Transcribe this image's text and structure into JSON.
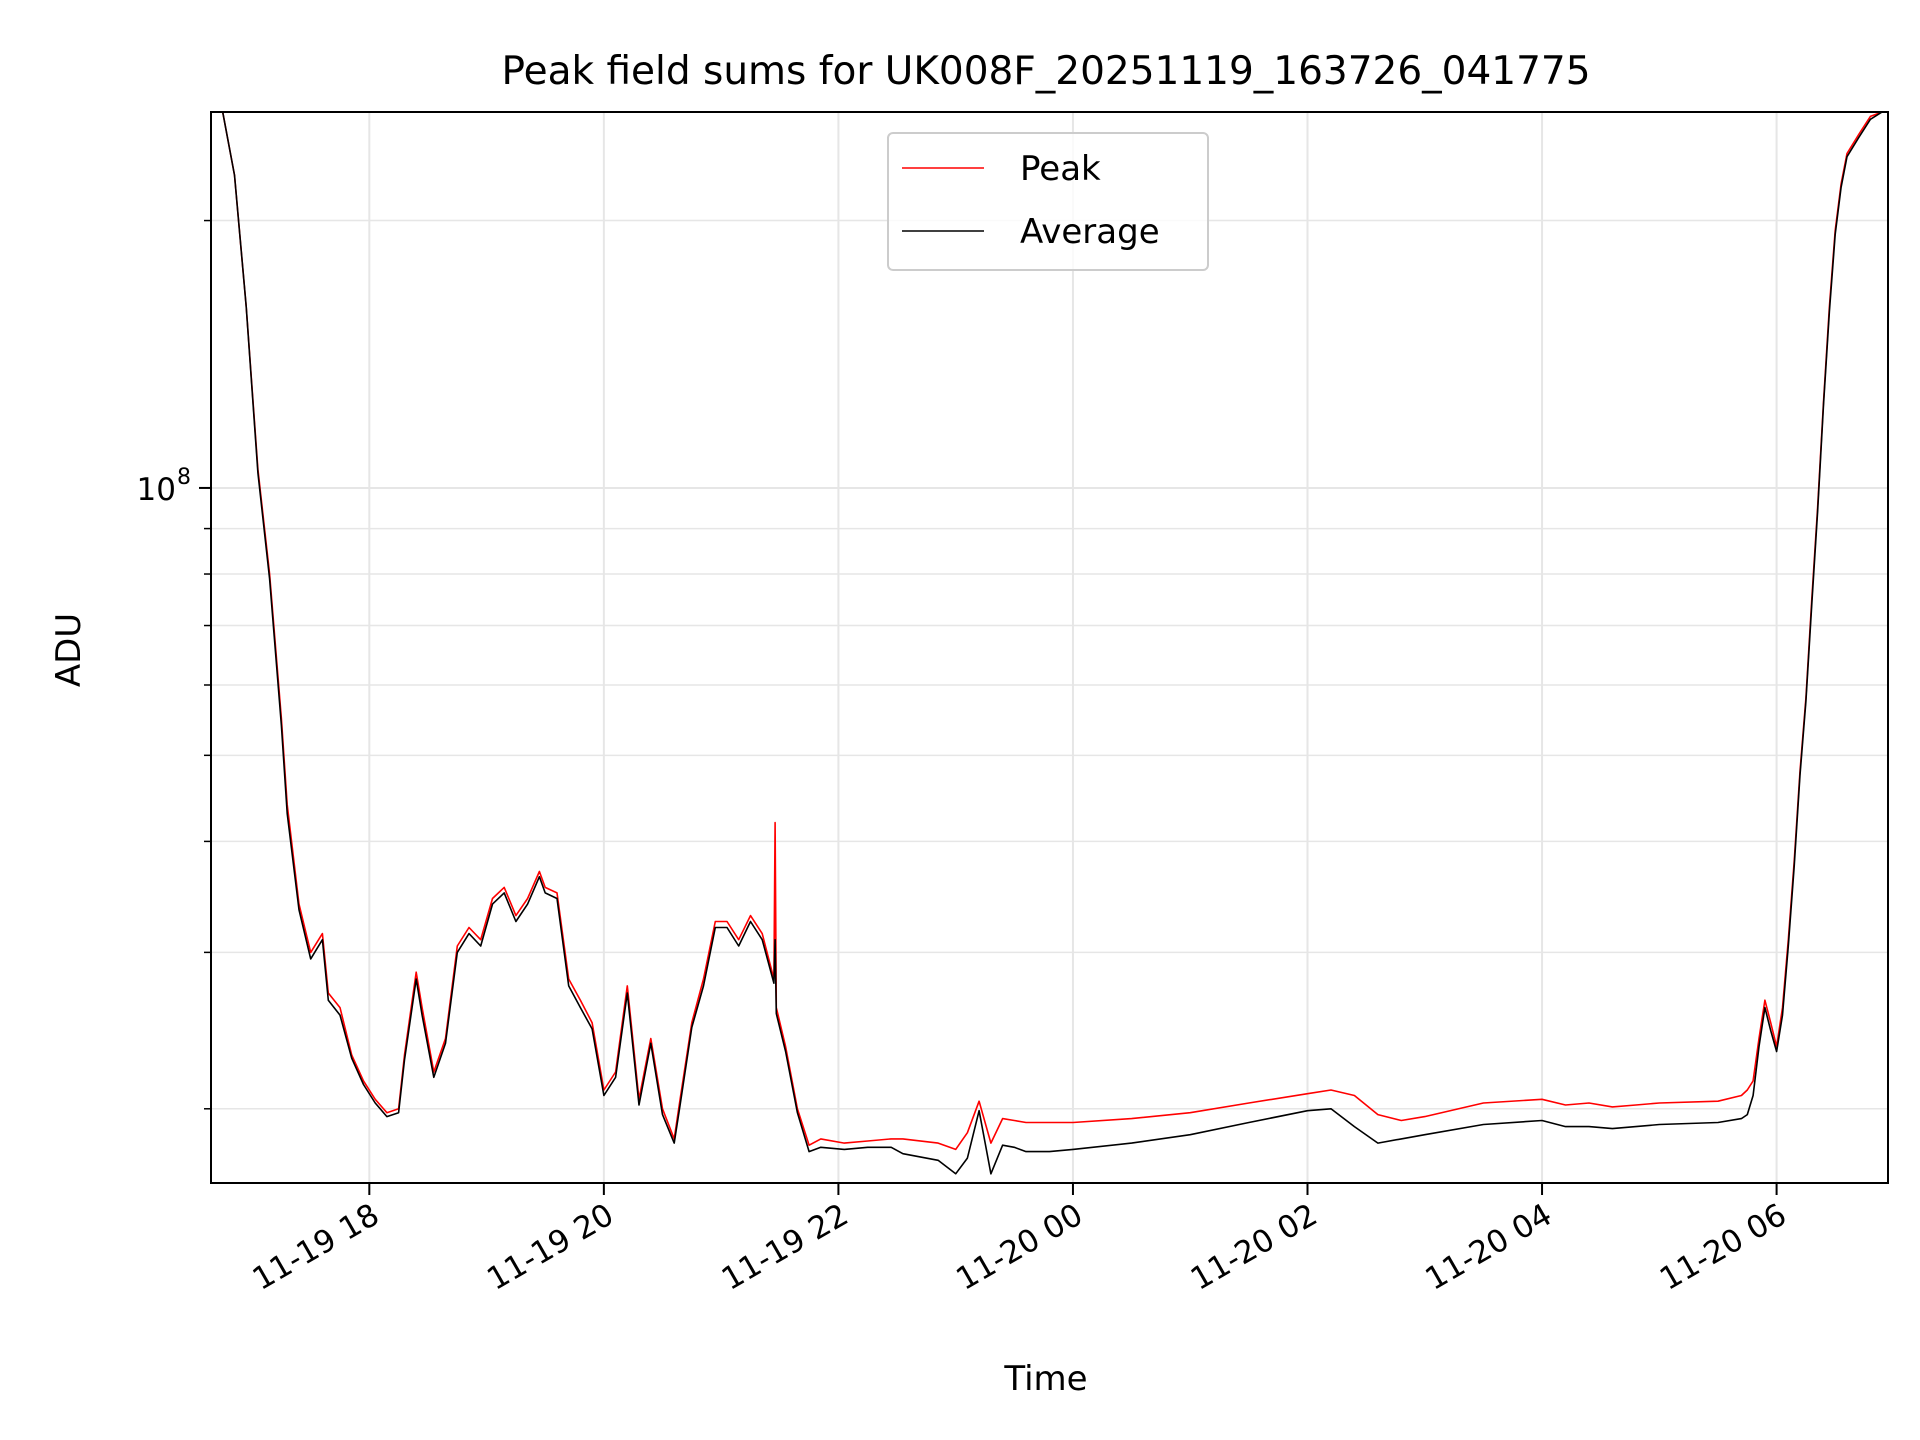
{
  "chart_data": {
    "type": "line",
    "title": "Peak field sums for UK008F_20251119_163726_041775",
    "xlabel": "Time",
    "ylabel": "ADU",
    "yscale": "log",
    "grid": true,
    "legend_position": "top-center",
    "x_unit": "hours since 2025-11-19 16:00",
    "xlim": [
      16.65,
      30.95
    ],
    "ylim": [
      16500000,
      265000000
    ],
    "x_ticks": [
      {
        "value": 18,
        "label": "11-19 18"
      },
      {
        "value": 20,
        "label": "11-19 20"
      },
      {
        "value": 22,
        "label": "11-19 22"
      },
      {
        "value": 24,
        "label": "11-20 00"
      },
      {
        "value": 26,
        "label": "11-20 02"
      },
      {
        "value": 28,
        "label": "11-20 04"
      },
      {
        "value": 30,
        "label": "11-20 06"
      }
    ],
    "y_major_ticks": [
      {
        "value": 100000000,
        "base": "10",
        "exp": "8"
      }
    ],
    "y_minor_ticks": [
      20000000,
      30000000,
      40000000,
      50000000,
      60000000,
      70000000,
      80000000,
      90000000,
      200000000
    ],
    "series": [
      {
        "name": "Peak",
        "color": "#ff0000",
        "x": [
          16.75,
          16.85,
          16.95,
          17.05,
          17.15,
          17.25,
          17.3,
          17.4,
          17.5,
          17.6,
          17.65,
          17.75,
          17.85,
          17.95,
          18.05,
          18.15,
          18.25,
          18.3,
          18.4,
          18.45,
          18.55,
          18.65,
          18.75,
          18.85,
          18.95,
          19.05,
          19.15,
          19.25,
          19.35,
          19.45,
          19.5,
          19.6,
          19.7,
          19.8,
          19.9,
          20.0,
          20.1,
          20.2,
          20.3,
          20.4,
          20.5,
          20.6,
          20.65,
          20.75,
          20.85,
          20.95,
          21.05,
          21.15,
          21.25,
          21.35,
          21.45,
          21.46,
          21.47,
          21.55,
          21.65,
          21.75,
          21.85,
          22.05,
          22.25,
          22.45,
          22.55,
          22.85,
          23.0,
          23.1,
          23.2,
          23.3,
          23.4,
          23.5,
          23.6,
          23.8,
          24.0,
          24.5,
          25.0,
          25.5,
          26.0,
          26.2,
          26.4,
          26.6,
          26.8,
          27.0,
          27.5,
          28.0,
          28.2,
          28.4,
          28.6,
          28.8,
          29.0,
          29.5,
          29.7,
          29.75,
          29.8,
          29.85,
          29.9,
          29.95,
          30.0,
          30.05,
          30.1,
          30.15,
          30.2,
          30.25,
          30.3,
          30.35,
          30.4,
          30.45,
          30.5,
          30.55,
          30.6,
          30.7,
          30.8,
          30.9
        ],
        "y": [
          265000000,
          225000000,
          160000000,
          105000000,
          80000000,
          55000000,
          44000000,
          34000000,
          30000000,
          31500000,
          27000000,
          26000000,
          23000000,
          21500000,
          20500000,
          19800000,
          20000000,
          23000000,
          28500000,
          26000000,
          22000000,
          24000000,
          30500000,
          32000000,
          31000000,
          34500000,
          35500000,
          33000000,
          34500000,
          37000000,
          35500000,
          35000000,
          28000000,
          26500000,
          25000000,
          21000000,
          22000000,
          27500000,
          20500000,
          24000000,
          20000000,
          18500000,
          20500000,
          25000000,
          28000000,
          32500000,
          32500000,
          31000000,
          33000000,
          31500000,
          28000000,
          42000000,
          26000000,
          23500000,
          20000000,
          18200000,
          18500000,
          18300000,
          18400000,
          18500000,
          18500000,
          18300000,
          18000000,
          18800000,
          20400000,
          18300000,
          19500000,
          19400000,
          19300000,
          19300000,
          19300000,
          19500000,
          19800000,
          20300000,
          20800000,
          21000000,
          20700000,
          19700000,
          19400000,
          19600000,
          20300000,
          20500000,
          20200000,
          20300000,
          20100000,
          20200000,
          20300000,
          20400000,
          20700000,
          21000000,
          21500000,
          24000000,
          26500000,
          25000000,
          23500000,
          26000000,
          31000000,
          38000000,
          48000000,
          58000000,
          75000000,
          95000000,
          125000000,
          160000000,
          195000000,
          220000000,
          238000000,
          250000000,
          262000000,
          265000000
        ]
      },
      {
        "name": "Average",
        "color": "#000000",
        "x": [
          16.75,
          16.85,
          16.95,
          17.05,
          17.15,
          17.25,
          17.3,
          17.4,
          17.5,
          17.6,
          17.65,
          17.75,
          17.85,
          17.95,
          18.05,
          18.15,
          18.25,
          18.3,
          18.4,
          18.45,
          18.55,
          18.65,
          18.75,
          18.85,
          18.95,
          19.05,
          19.15,
          19.25,
          19.35,
          19.45,
          19.5,
          19.6,
          19.7,
          19.8,
          19.9,
          20.0,
          20.1,
          20.2,
          20.3,
          20.4,
          20.5,
          20.6,
          20.65,
          20.75,
          20.85,
          20.95,
          21.05,
          21.15,
          21.25,
          21.35,
          21.45,
          21.46,
          21.47,
          21.55,
          21.65,
          21.75,
          21.85,
          22.05,
          22.25,
          22.45,
          22.55,
          22.85,
          23.0,
          23.1,
          23.2,
          23.3,
          23.4,
          23.5,
          23.6,
          23.8,
          24.0,
          24.5,
          25.0,
          25.5,
          26.0,
          26.2,
          26.4,
          26.6,
          26.8,
          27.0,
          27.5,
          28.0,
          28.2,
          28.4,
          28.6,
          28.8,
          29.0,
          29.5,
          29.7,
          29.75,
          29.8,
          29.85,
          29.9,
          29.95,
          30.0,
          30.05,
          30.1,
          30.15,
          30.2,
          30.25,
          30.3,
          30.35,
          30.4,
          30.45,
          30.5,
          30.55,
          30.6,
          30.7,
          30.8,
          30.9
        ],
        "y": [
          265000000,
          225000000,
          160000000,
          104000000,
          79000000,
          54000000,
          43000000,
          33500000,
          29500000,
          31000000,
          26500000,
          25500000,
          22800000,
          21300000,
          20300000,
          19600000,
          19800000,
          22700000,
          28000000,
          25500000,
          21700000,
          23700000,
          30000000,
          31500000,
          30500000,
          34000000,
          35000000,
          32500000,
          34000000,
          36500000,
          35000000,
          34500000,
          27500000,
          26000000,
          24600000,
          20700000,
          21700000,
          27000000,
          20200000,
          23700000,
          19700000,
          18300000,
          20200000,
          24700000,
          27500000,
          32000000,
          32000000,
          30500000,
          32500000,
          31000000,
          27700000,
          31000000,
          25600000,
          23200000,
          19800000,
          17900000,
          18100000,
          18000000,
          18100000,
          18100000,
          17800000,
          17500000,
          16900000,
          17600000,
          19900000,
          16900000,
          18200000,
          18100000,
          17900000,
          17900000,
          18000000,
          18300000,
          18700000,
          19300000,
          19900000,
          20000000,
          19100000,
          18300000,
          18500000,
          18700000,
          19200000,
          19400000,
          19100000,
          19100000,
          19000000,
          19100000,
          19200000,
          19300000,
          19500000,
          19700000,
          20700000,
          23500000,
          26000000,
          24500000,
          23200000,
          25500000,
          30500000,
          37500000,
          47500000,
          57500000,
          74000000,
          94000000,
          124000000,
          158000000,
          193000000,
          218000000,
          236000000,
          248000000,
          260000000,
          265000000
        ]
      }
    ]
  }
}
